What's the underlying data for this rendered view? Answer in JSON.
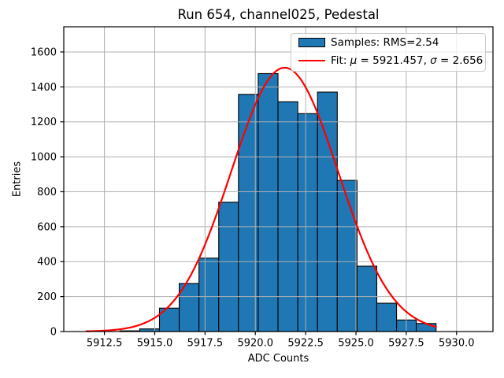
{
  "figure": {
    "title": "Run 654, channel025, Pedestal",
    "xlabel": "ADC Counts",
    "ylabel": "Entries"
  },
  "legend": {
    "samples_label": "Samples: RMS=2.54",
    "fit_prefix": "Fit: ",
    "fit_mu_symbol": "μ",
    "fit_mu_value": " = 5921.457, ",
    "fit_sigma_symbol": "σ",
    "fit_sigma_value": " = 2.656"
  },
  "chart_data": {
    "type": "bar",
    "subtype": "histogram-with-gaussian-fit",
    "title": "Run 654, channel025, Pedestal",
    "xlabel": "ADC Counts",
    "ylabel": "Entries",
    "xlim": [
      5910.48,
      5931.81
    ],
    "ylim": [
      0,
      1744
    ],
    "grid": true,
    "grid_above_bars": true,
    "legend_position": "upper right",
    "legend_entries": [
      "Samples: RMS=2.54",
      "Fit: μ = 5921.457, σ = 2.656"
    ],
    "histogram": {
      "rms": 2.54,
      "bin_start": 5913.27,
      "bin_width": 0.982,
      "bin_count": 16,
      "counts": [
        4,
        15,
        134,
        275,
        420,
        740,
        1357,
        1476,
        1315,
        1247,
        1370,
        865,
        374,
        162,
        66,
        46
      ]
    },
    "fit": {
      "type": "gaussian",
      "mu": 5921.457,
      "sigma": 2.656,
      "amplitude": 1510,
      "x_range": [
        5911.6,
        5928.98
      ]
    },
    "xticks": {
      "values": [
        5912.5,
        5915.0,
        5917.5,
        5920.0,
        5922.5,
        5925.0,
        5927.5,
        5930.0
      ],
      "labels": [
        "5912.5",
        "5915.0",
        "5917.5",
        "5920.0",
        "5922.5",
        "5925.0",
        "5927.5",
        "5930.0"
      ]
    },
    "yticks": {
      "values": [
        0,
        200,
        400,
        600,
        800,
        1000,
        1200,
        1400,
        1600
      ],
      "labels": [
        "0",
        "200",
        "400",
        "600",
        "800",
        "1000",
        "1200",
        "1400",
        "1600"
      ]
    },
    "colors": {
      "bar_fill": "#1f77b4",
      "bar_edge": "#000000",
      "fit_line": "#ff0000",
      "grid": "#b0b0b0",
      "spine": "#000000"
    }
  }
}
